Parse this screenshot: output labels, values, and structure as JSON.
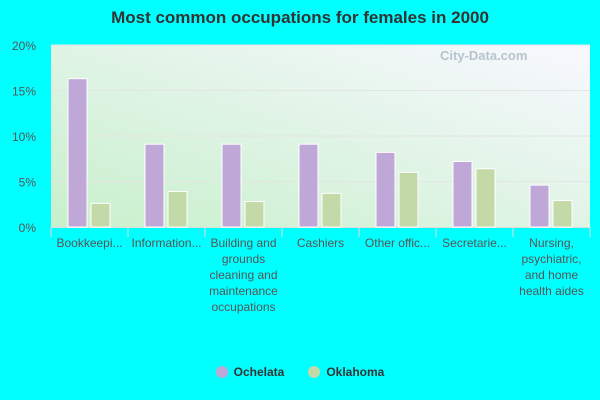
{
  "chart_data": {
    "type": "bar",
    "title": "Most common occupations for females in 2000",
    "categories": [
      "Bookkeepi...",
      "Information...",
      "Building and grounds cleaning and maintenance occupations",
      "Cashiers",
      "Other offic...",
      "Secretarie...",
      "Nursing, psychiatric, and home health aides"
    ],
    "series": [
      {
        "name": "Ochelata",
        "color": "#bfa8d8",
        "values": [
          16.3,
          9.1,
          9.1,
          9.1,
          8.2,
          7.2,
          4.6
        ]
      },
      {
        "name": "Oklahoma",
        "color": "#c4d9a8",
        "values": [
          2.6,
          3.9,
          2.8,
          3.7,
          6.0,
          6.4,
          2.9
        ]
      }
    ],
    "ylim": [
      0,
      20
    ],
    "yticks": [
      "0%",
      "5%",
      "10%",
      "15%",
      "20%"
    ],
    "grid": true,
    "legend": "bottom"
  },
  "watermark": "City-Data.com"
}
